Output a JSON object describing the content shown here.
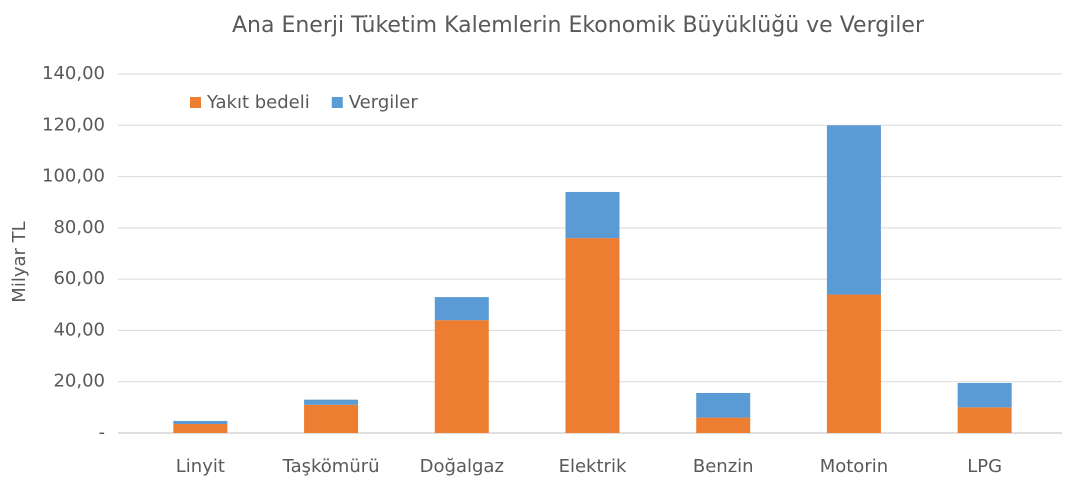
{
  "chart_data": {
    "type": "stacked_bar",
    "title": "Ana Enerji Tüketim Kalemlerin Ekonomik Büyüklüğü ve Vergiler",
    "y_label": "Milyar TL",
    "categories": [
      "Linyit",
      "Taşkömürü",
      "Doğalgaz",
      "Elektrik",
      "Benzin",
      "Motorin",
      "LPG"
    ],
    "series": [
      {
        "name": "Yakıt bedeli",
        "color": "#ed7d31",
        "values": [
          3.5,
          11,
          44,
          76,
          6,
          54,
          10
        ]
      },
      {
        "name": "Vergiler",
        "color": "#5b9bd5",
        "values": [
          1.2,
          2,
          9,
          18,
          9.6,
          66,
          9.5
        ]
      }
    ],
    "ylim": [
      0,
      140
    ],
    "yticks": [
      {
        "value": 0,
        "label": "-"
      },
      {
        "value": 20,
        "label": "20,00"
      },
      {
        "value": 40,
        "label": "40,00"
      },
      {
        "value": 60,
        "label": "60,00"
      },
      {
        "value": 80,
        "label": "80,00"
      },
      {
        "value": 100,
        "label": "100,00"
      },
      {
        "value": 120,
        "label": "120,00"
      },
      {
        "value": 140,
        "label": "140,00"
      }
    ],
    "grid": true,
    "legend": "top-left"
  }
}
